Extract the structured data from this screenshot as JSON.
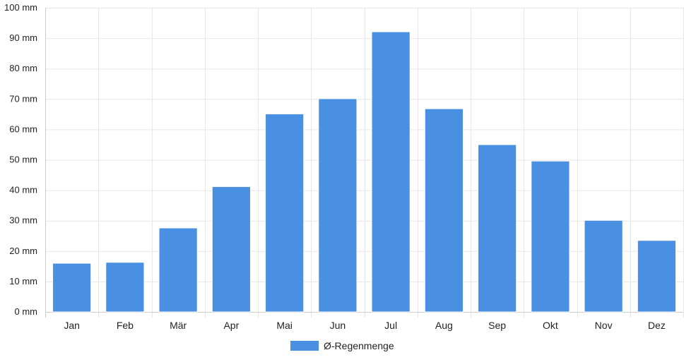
{
  "chart_data": {
    "type": "bar",
    "title": "",
    "xlabel": "",
    "ylabel": "",
    "y_unit": "mm",
    "categories": [
      "Jan",
      "Feb",
      "Mär",
      "Apr",
      "Mai",
      "Jun",
      "Jul",
      "Aug",
      "Sep",
      "Okt",
      "Nov",
      "Dez"
    ],
    "series": [
      {
        "name": "Ø-Regenmenge",
        "color": "#4a90e2",
        "values": [
          16,
          16.3,
          27.6,
          41.2,
          65.1,
          70.1,
          92.1,
          66.8,
          55,
          49.6,
          30.1,
          23.5
        ]
      }
    ],
    "ylim": [
      0,
      100
    ],
    "y_ticks": [
      0,
      10,
      20,
      30,
      40,
      50,
      60,
      70,
      80,
      90,
      100
    ],
    "y_tick_labels": [
      "0 mm",
      "10 mm",
      "20 mm",
      "30 mm",
      "40 mm",
      "50 mm",
      "60 mm",
      "70 mm",
      "80 mm",
      "90 mm",
      "100 mm"
    ],
    "grid": true,
    "legend_position": "bottom",
    "colors": {
      "grid": "#e6e6e6",
      "axis": "#cccccc",
      "text": "#222222",
      "bar_border": "#ffffff"
    }
  }
}
